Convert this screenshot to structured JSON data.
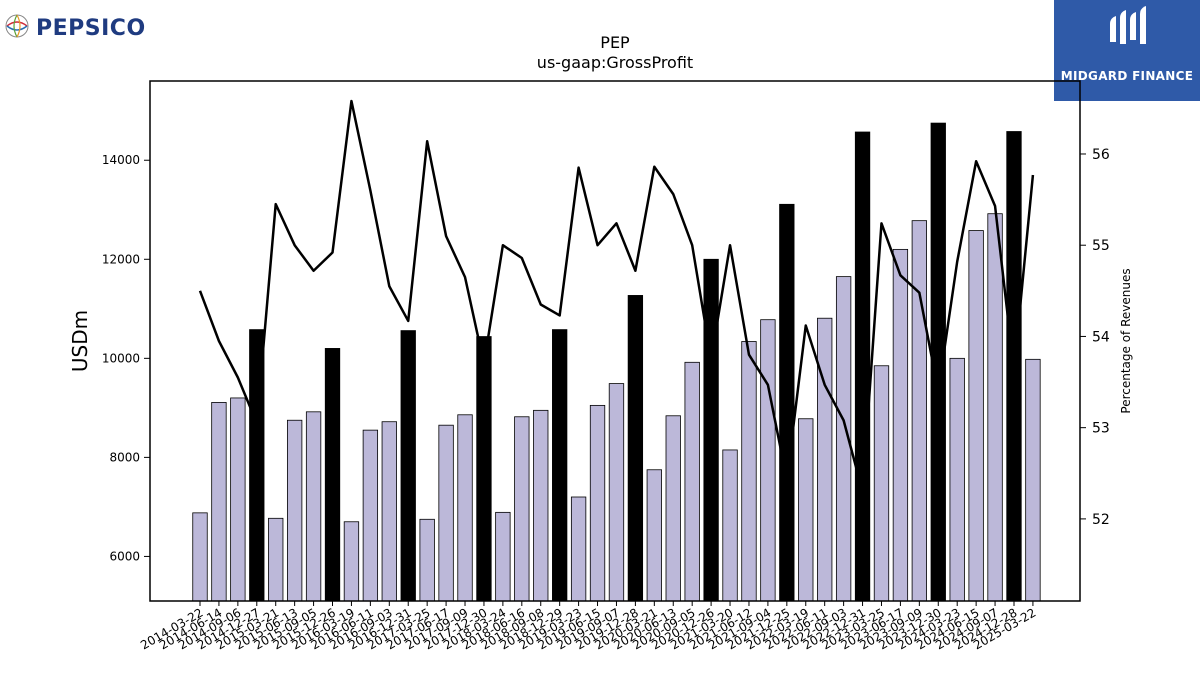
{
  "brand": {
    "left_logo_text": "PEPSICO",
    "right_logo_text": "MIDGARD FINANCE",
    "right_logo_color": "#2f5aa8",
    "left_logo_color": "#1f3b80"
  },
  "chart_data": {
    "type": "bar",
    "title": "PEP",
    "subtitle": "us-gaap:GrossProfit",
    "ylabel": "USDm",
    "y2label": "Percentage of Revenues",
    "ylim": [
      5100,
      15600
    ],
    "y2lim": [
      51.1,
      56.8
    ],
    "yticks": [
      6000,
      8000,
      10000,
      12000,
      14000
    ],
    "y2ticks": [
      52,
      53,
      54,
      55,
      56
    ],
    "bar_color_quarter": "#bcb8d9",
    "bar_color_annual": "#000000",
    "line_color": "#000000",
    "categories": [
      "2014-03-22",
      "2014-06-14",
      "2014-09-06",
      "2014-12-27",
      "2015-03-21",
      "2015-06-13",
      "2015-09-05",
      "2015-12-26",
      "2016-03-19",
      "2016-06-11",
      "2016-09-03",
      "2016-12-31",
      "2017-03-25",
      "2017-06-17",
      "2017-09-09",
      "2017-12-30",
      "2018-03-24",
      "2018-06-16",
      "2018-09-08",
      "2018-12-29",
      "2019-03-23",
      "2019-06-15",
      "2019-09-07",
      "2019-12-28",
      "2020-03-21",
      "2020-06-13",
      "2020-09-05",
      "2020-12-26",
      "2021-03-20",
      "2021-06-12",
      "2021-09-04",
      "2021-12-25",
      "2022-03-19",
      "2022-06-11",
      "2022-09-03",
      "2022-12-31",
      "2023-03-25",
      "2023-06-17",
      "2023-09-09",
      "2023-12-30",
      "2024-03-23",
      "2024-06-15",
      "2024-09-07",
      "2024-12-28",
      "2025-03-22"
    ],
    "series": [
      {
        "kind": "bar",
        "values": [
          6880,
          9110,
          9200,
          10580,
          6770,
          8750,
          8920,
          10200,
          6700,
          8550,
          8720,
          10560,
          6750,
          8650,
          8860,
          10440,
          6890,
          8820,
          8950,
          10580,
          7200,
          9050,
          9490,
          11270,
          7750,
          8840,
          9920,
          12000,
          8150,
          10340,
          10780,
          13110,
          8780,
          10810,
          11650,
          14570,
          9850,
          12200,
          12780,
          14750,
          10000,
          12580,
          12920,
          14580,
          9980
        ],
        "annual_flags": [
          false,
          false,
          false,
          true,
          false,
          false,
          false,
          true,
          false,
          false,
          false,
          true,
          false,
          false,
          false,
          true,
          false,
          false,
          false,
          true,
          false,
          false,
          false,
          true,
          false,
          false,
          false,
          true,
          false,
          false,
          false,
          true,
          false,
          false,
          false,
          true,
          false,
          false,
          false,
          true,
          false,
          false,
          false,
          true,
          false
        ]
      },
      {
        "kind": "line",
        "values": [
          54.5,
          53.95,
          53.55,
          53.05,
          55.45,
          55.0,
          54.72,
          54.92,
          56.58,
          55.6,
          54.55,
          54.17,
          56.14,
          55.1,
          54.65,
          53.7,
          55.0,
          54.86,
          54.35,
          54.23,
          55.85,
          55.0,
          55.24,
          54.72,
          55.86,
          55.56,
          55.0,
          53.75,
          55.0,
          53.8,
          53.47,
          52.43,
          54.12,
          53.47,
          53.08,
          52.3,
          55.24,
          54.67,
          54.48,
          53.4,
          54.82,
          55.92,
          55.43,
          53.63,
          55.77
        ]
      }
    ]
  }
}
